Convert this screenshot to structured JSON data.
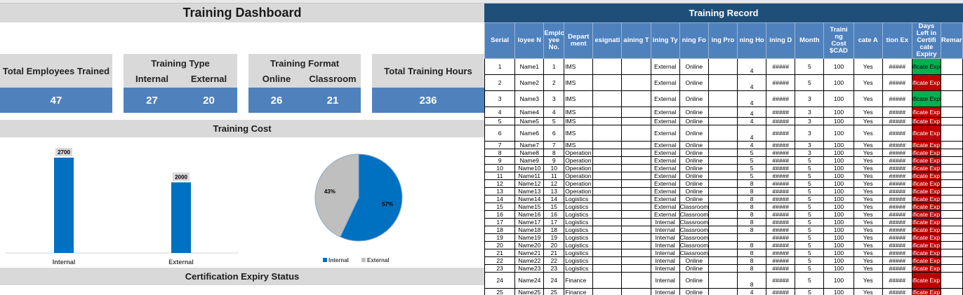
{
  "dashboard": {
    "title": "Training Dashboard",
    "total_employees": {
      "label": "Total Employees Trained",
      "value": "47"
    },
    "training_type": {
      "label": "Training Type",
      "internal_label": "Internal",
      "external_label": "External",
      "internal_value": "27",
      "external_value": "20"
    },
    "training_format": {
      "label": "Training Format",
      "online_label": "Online",
      "classroom_label": "Classroom",
      "online_value": "26",
      "classroom_value": "21"
    },
    "total_hours": {
      "label": "Total Training Hours",
      "value": "236"
    },
    "cost_section_title": "Training Cost",
    "cert_section_title": "Certification Expiry Status"
  },
  "chart_data": [
    {
      "type": "bar",
      "categories": [
        "Internal",
        "External"
      ],
      "values": [
        2700,
        2000
      ],
      "data_labels": [
        "2700",
        "2000"
      ],
      "color": "#0070c0",
      "ylim": [
        0,
        2700
      ]
    },
    {
      "type": "pie",
      "labels": [
        "Internal",
        "External"
      ],
      "values": [
        57,
        43
      ],
      "data_labels": [
        "57%",
        "43%"
      ],
      "colors": [
        "#0070c0",
        "#bfbfbf"
      ],
      "legend": "bottom"
    }
  ],
  "record": {
    "title": "Training Record",
    "headers": [
      "Serial",
      "loyee N",
      "Emplo\nyee\nNo.",
      "Depart\nment",
      "esignati",
      "aining T",
      "ining Ty",
      "ning Fo",
      "ing Pro",
      "ning Ho",
      "ining D",
      "Month",
      "Traini\nng\nCost\n$CAD",
      "cate A",
      "tion Ex",
      "Days\nLeft in\nCertifi\ncate\nExpiry",
      "Remarks"
    ],
    "rows": [
      {
        "serial": "1",
        "name": "Name1",
        "no": "1",
        "dept": "IMS",
        "type": "External",
        "format": "Online",
        "hours": "4",
        "date": "#####",
        "month": "5",
        "cost": "100",
        "att": "Yes",
        "exp": "#####",
        "days": "ificate Expired",
        "status": "green",
        "tall": true
      },
      {
        "serial": "2",
        "name": "Name2",
        "no": "2",
        "dept": "IMS",
        "type": "External",
        "format": "Online",
        "hours": "4",
        "date": "#####",
        "month": "5",
        "cost": "100",
        "att": "Yes",
        "exp": "#####",
        "days": "ificate Exp",
        "status": "red",
        "tall": true
      },
      {
        "serial": "3",
        "name": "Name3",
        "no": "3",
        "dept": "IMS",
        "type": "External",
        "format": "Online",
        "hours": "4",
        "date": "#####",
        "month": "3",
        "cost": "100",
        "att": "Yes",
        "exp": "#####",
        "days": "ificate Expired",
        "status": "green",
        "tall": true
      },
      {
        "serial": "4",
        "name": "Name4",
        "no": "4",
        "dept": "IMS",
        "type": "External",
        "format": "Online",
        "hours": "4",
        "date": "#####",
        "month": "3",
        "cost": "100",
        "att": "Yes",
        "exp": "#####",
        "days": "ificate Exp",
        "status": "red",
        "tall": false,
        "mid": true
      },
      {
        "serial": "5",
        "name": "Name5",
        "no": "5",
        "dept": "IMS",
        "type": "External",
        "format": "Online",
        "hours": "4",
        "date": "#####",
        "month": "3",
        "cost": "100",
        "att": "Yes",
        "exp": "#####",
        "days": "ificate Exp",
        "status": "red",
        "tall": false
      },
      {
        "serial": "6",
        "name": "Name6",
        "no": "6",
        "dept": "IMS",
        "type": "External",
        "format": "Online",
        "hours": "4",
        "date": "#####",
        "month": "3",
        "cost": "100",
        "att": "Yes",
        "exp": "#####",
        "days": "ificate Exp",
        "status": "red",
        "tall": true
      },
      {
        "serial": "7",
        "name": "Name7",
        "no": "7",
        "dept": "IMS",
        "type": "External",
        "format": "Online",
        "hours": "4",
        "date": "#####",
        "month": "3",
        "cost": "100",
        "att": "Yes",
        "exp": "#####",
        "days": "ificate Exp",
        "status": "red",
        "tall": false
      },
      {
        "serial": "8",
        "name": "Name8",
        "no": "8",
        "dept": "Operation",
        "type": "External",
        "format": "Online",
        "hours": "5",
        "date": "#####",
        "month": "3",
        "cost": "100",
        "att": "Yes",
        "exp": "#####",
        "days": "ificate Exp",
        "status": "red",
        "tall": false
      },
      {
        "serial": "9",
        "name": "Name9",
        "no": "9",
        "dept": "Operation",
        "type": "External",
        "format": "Online",
        "hours": "5",
        "date": "#####",
        "month": "5",
        "cost": "100",
        "att": "Yes",
        "exp": "#####",
        "days": "ificate Exp",
        "status": "red",
        "tall": false
      },
      {
        "serial": "10",
        "name": "Name10",
        "no": "10",
        "dept": "Operation",
        "type": "External",
        "format": "Online",
        "hours": "5",
        "date": "#####",
        "month": "5",
        "cost": "100",
        "att": "Yes",
        "exp": "#####",
        "days": "ificate Exp",
        "status": "red",
        "tall": false
      },
      {
        "serial": "11",
        "name": "Name11",
        "no": "11",
        "dept": "Operation",
        "type": "External",
        "format": "Online",
        "hours": "5",
        "date": "#####",
        "month": "5",
        "cost": "100",
        "att": "Yes",
        "exp": "#####",
        "days": "ificate Exp",
        "status": "red",
        "tall": false
      },
      {
        "serial": "12",
        "name": "Name12",
        "no": "12",
        "dept": "Operation",
        "type": "External",
        "format": "Online",
        "hours": "8",
        "date": "#####",
        "month": "5",
        "cost": "100",
        "att": "Yes",
        "exp": "#####",
        "days": "ificate Exp",
        "status": "red",
        "tall": false
      },
      {
        "serial": "13",
        "name": "Name13",
        "no": "13",
        "dept": "Operation",
        "type": "External",
        "format": "Online",
        "hours": "8",
        "date": "#####",
        "month": "5",
        "cost": "100",
        "att": "Yes",
        "exp": "#####",
        "days": "ificate Exp",
        "status": "red",
        "tall": false
      },
      {
        "serial": "14",
        "name": "Name14",
        "no": "14",
        "dept": "Logistics",
        "type": "External",
        "format": "Online",
        "hours": "8",
        "date": "#####",
        "month": "5",
        "cost": "100",
        "att": "Yes",
        "exp": "#####",
        "days": "ificate Exp",
        "status": "red",
        "tall": false
      },
      {
        "serial": "15",
        "name": "Name15",
        "no": "15",
        "dept": "Logistics",
        "type": "External",
        "format": "Classroom",
        "hours": "8",
        "date": "#####",
        "month": "5",
        "cost": "100",
        "att": "Yes",
        "exp": "#####",
        "days": "ificate Exp",
        "status": "red",
        "tall": false
      },
      {
        "serial": "16",
        "name": "Name16",
        "no": "16",
        "dept": "Logistics",
        "type": "External",
        "format": "Classroom",
        "hours": "8",
        "date": "#####",
        "month": "5",
        "cost": "100",
        "att": "Yes",
        "exp": "#####",
        "days": "ificate Exp",
        "status": "red",
        "tall": false
      },
      {
        "serial": "17",
        "name": "Name17",
        "no": "17",
        "dept": "Logistics",
        "type": "Internal",
        "format": "Classroom",
        "hours": "8",
        "date": "#####",
        "month": "5",
        "cost": "100",
        "att": "Yes",
        "exp": "#####",
        "days": "ificate Exp",
        "status": "red",
        "tall": false
      },
      {
        "serial": "18",
        "name": "Name18",
        "no": "18",
        "dept": "Logistics",
        "type": "Internal",
        "format": "Classroom",
        "hours": "8",
        "date": "#####",
        "month": "5",
        "cost": "100",
        "att": "Yes",
        "exp": "#####",
        "days": "ificate Exp",
        "status": "red",
        "tall": false
      },
      {
        "serial": "19",
        "name": "Name19",
        "no": "19",
        "dept": "Logistics",
        "type": "Internal",
        "format": "Classroom",
        "hours": "",
        "date": "#####",
        "month": "5",
        "cost": "100",
        "att": "Yes",
        "exp": "#####",
        "days": "ificate Exp",
        "status": "red",
        "tall": false
      },
      {
        "serial": "20",
        "name": "Name20",
        "no": "20",
        "dept": "Logistics",
        "type": "Internal",
        "format": "Classroom",
        "hours": "8",
        "date": "#####",
        "month": "5",
        "cost": "100",
        "att": "Yes",
        "exp": "#####",
        "days": "ificate Exp",
        "status": "red",
        "tall": false
      },
      {
        "serial": "21",
        "name": "Name21",
        "no": "21",
        "dept": "Logistics",
        "type": "Internal",
        "format": "Classroom",
        "hours": "8",
        "date": "#####",
        "month": "5",
        "cost": "100",
        "att": "Yes",
        "exp": "#####",
        "days": "ificate Exp",
        "status": "red",
        "tall": false
      },
      {
        "serial": "22",
        "name": "Name22",
        "no": "22",
        "dept": "Logistics",
        "type": "Internal",
        "format": "Online",
        "hours": "8",
        "date": "#####",
        "month": "5",
        "cost": "100",
        "att": "Yes",
        "exp": "#####",
        "days": "ificate Exp",
        "status": "red",
        "tall": false
      },
      {
        "serial": "23",
        "name": "Name23",
        "no": "23",
        "dept": "Logistics",
        "type": "Internal",
        "format": "Online",
        "hours": "8",
        "date": "#####",
        "month": "5",
        "cost": "100",
        "att": "Yes",
        "exp": "#####",
        "days": "ificate Exp",
        "status": "red",
        "tall": false
      },
      {
        "serial": "24",
        "name": "Name24",
        "no": "24",
        "dept": "Finance",
        "type": "Internal",
        "format": "Online",
        "hours": "8",
        "date": "#####",
        "month": "5",
        "cost": "100",
        "att": "Yes",
        "exp": "#####",
        "days": "ificate Exp",
        "status": "red",
        "tall": true
      },
      {
        "serial": "25",
        "name": "Name25",
        "no": "25",
        "dept": "Finance",
        "type": "Internal",
        "format": "Online",
        "hours": "4",
        "date": "#####",
        "month": "5",
        "cost": "100",
        "att": "Yes",
        "exp": "#####",
        "days": "ificate Exp",
        "status": "red",
        "tall": false
      }
    ]
  }
}
